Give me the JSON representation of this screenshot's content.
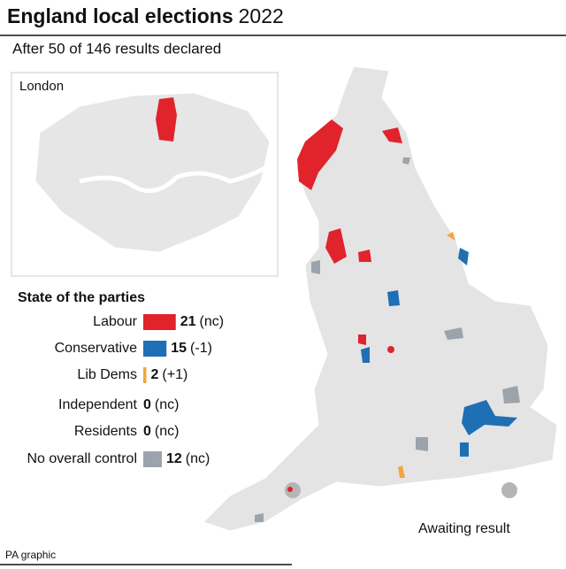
{
  "title": {
    "main": "England local elections",
    "year": "2022"
  },
  "subtitle": "After 50 of 146 results declared",
  "inset": {
    "label": "London"
  },
  "legend": {
    "title": "State of the parties",
    "rows": [
      {
        "name": "Labour",
        "color": "#e1232b",
        "seats": 21,
        "change": "(nc)"
      },
      {
        "name": "Conservative",
        "color": "#1f6fb4",
        "seats": 15,
        "change": "(-1)"
      },
      {
        "name": "Lib Dems",
        "color": "#f2a541",
        "seats": 2,
        "change": "(+1)"
      },
      {
        "name": "Independent",
        "color": "#c9c9c9",
        "seats": 0,
        "change": "(nc)"
      },
      {
        "name": "Residents",
        "color": "#c9c9c9",
        "seats": 0,
        "change": "(nc)"
      },
      {
        "name": "No overall control",
        "color": "#9ba3ac",
        "seats": 12,
        "change": "(nc)"
      }
    ]
  },
  "key": {
    "label": "Awaiting result"
  },
  "footer": "PA graphic"
}
